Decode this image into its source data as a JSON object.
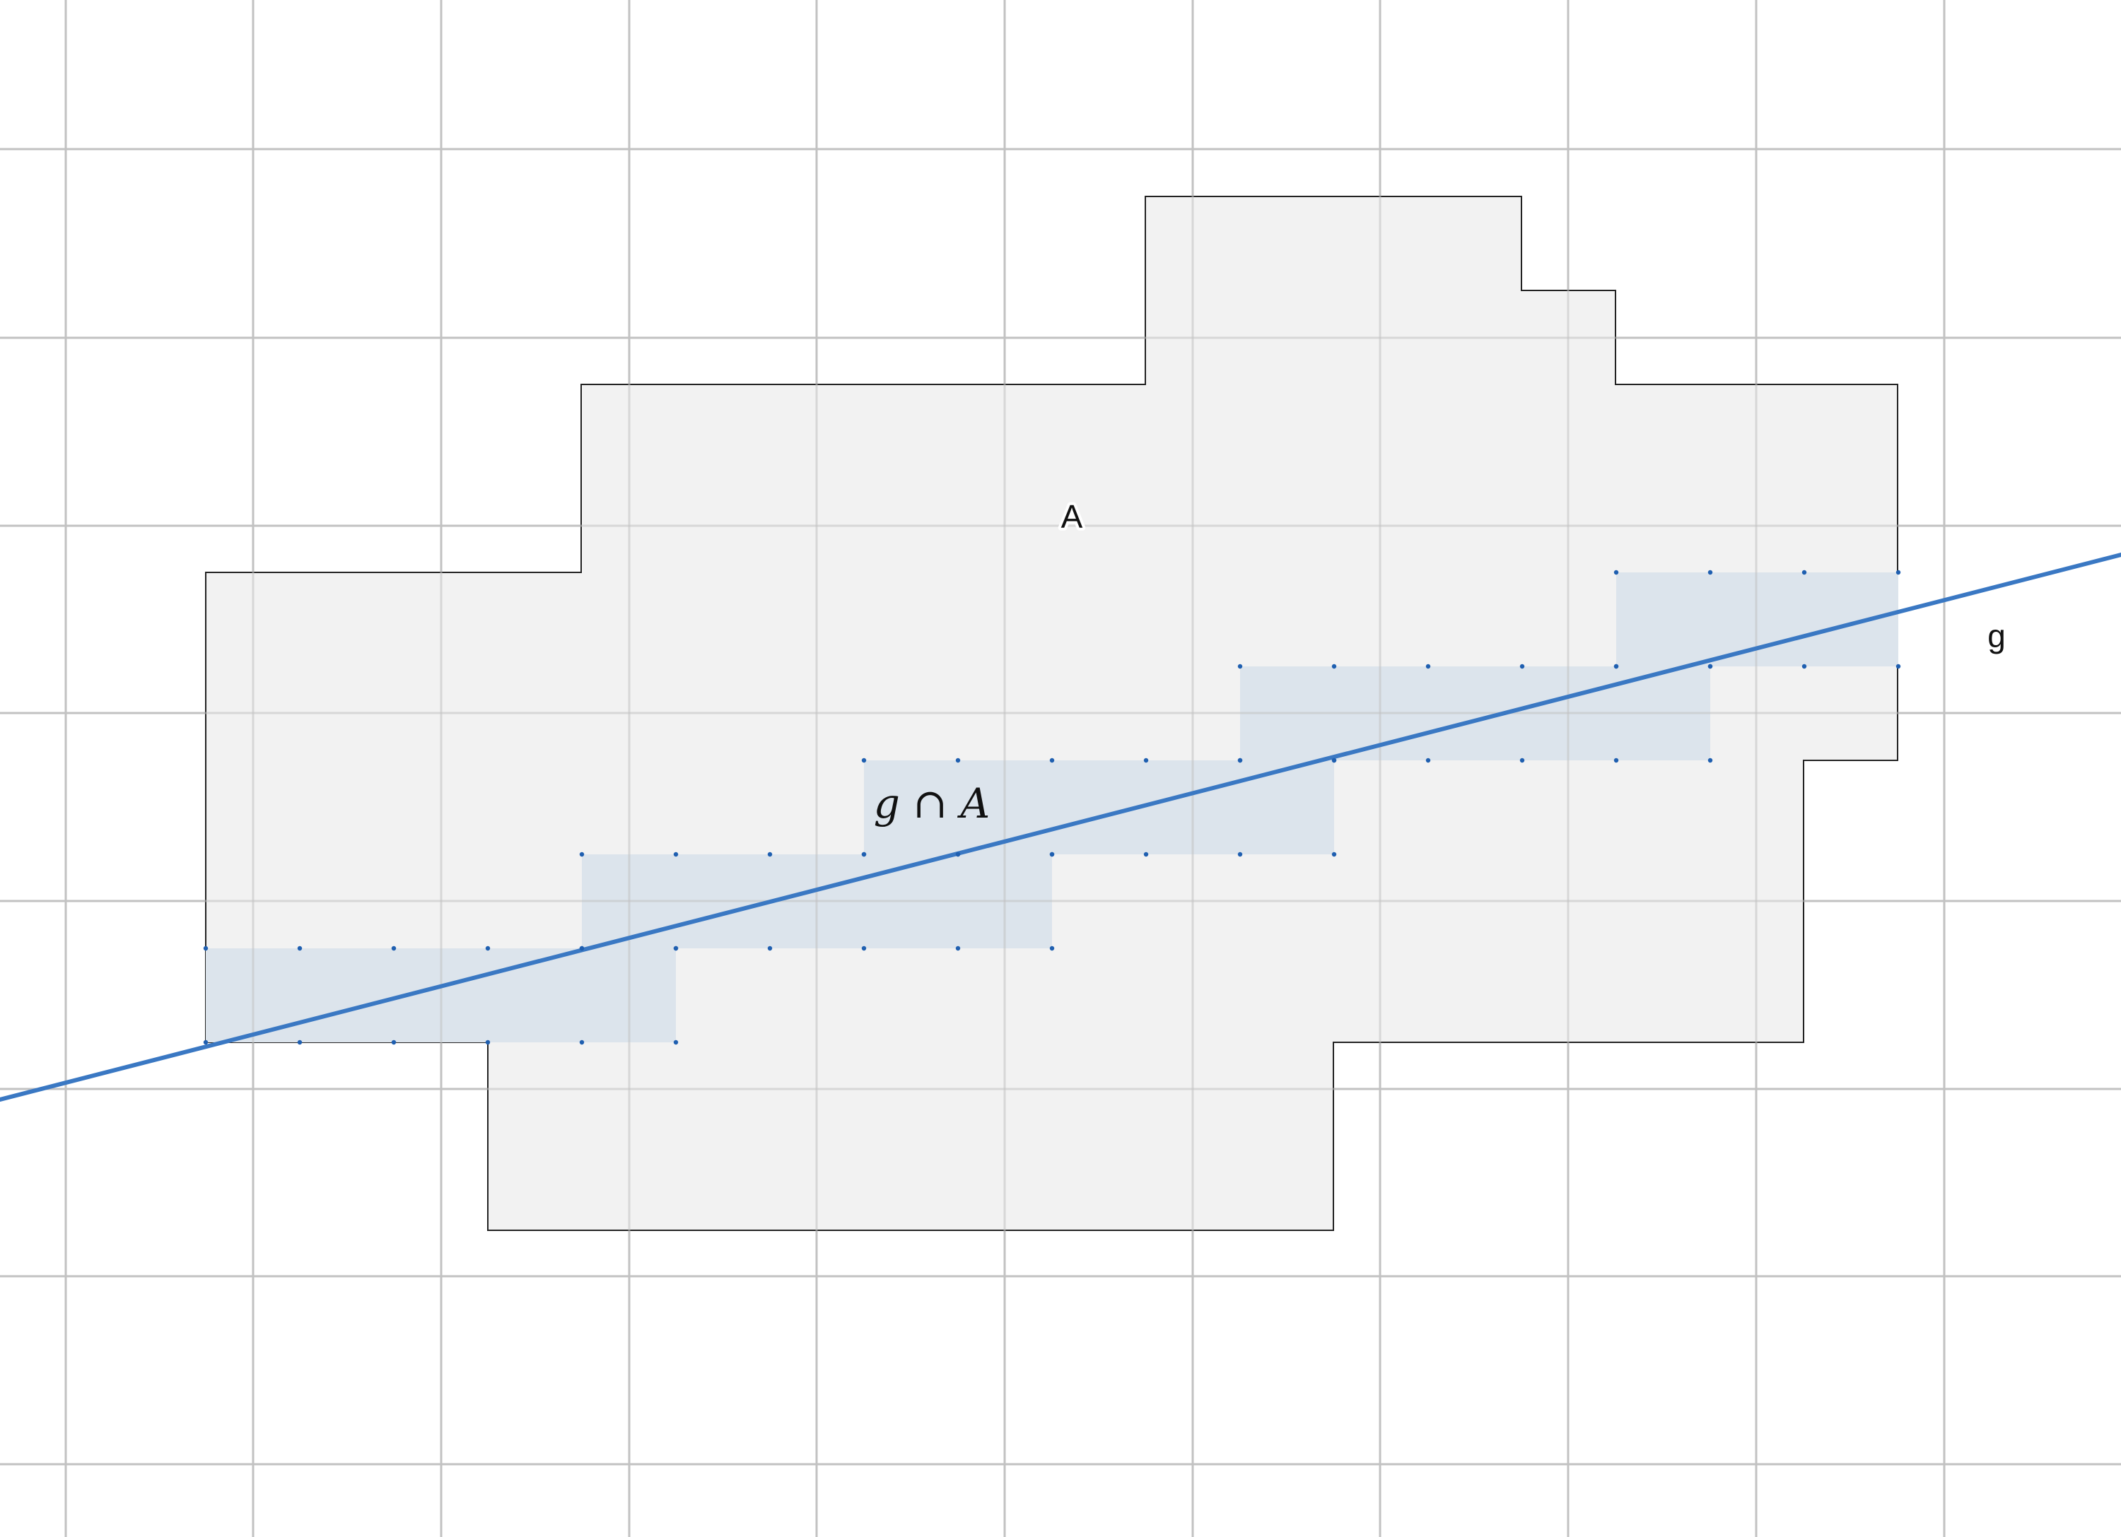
{
  "diagram": {
    "region_label": "A",
    "line_label": "g",
    "intersection_label": "g ∩ A",
    "colors": {
      "background": "#ffffff",
      "grid": "#c2c2c2",
      "region_fill": "#f2f2f2",
      "region_stroke": "#222222",
      "intersection_fill": "#dce4ec",
      "line": "#3a78c3",
      "dots": "#1f5fb0"
    }
  }
}
